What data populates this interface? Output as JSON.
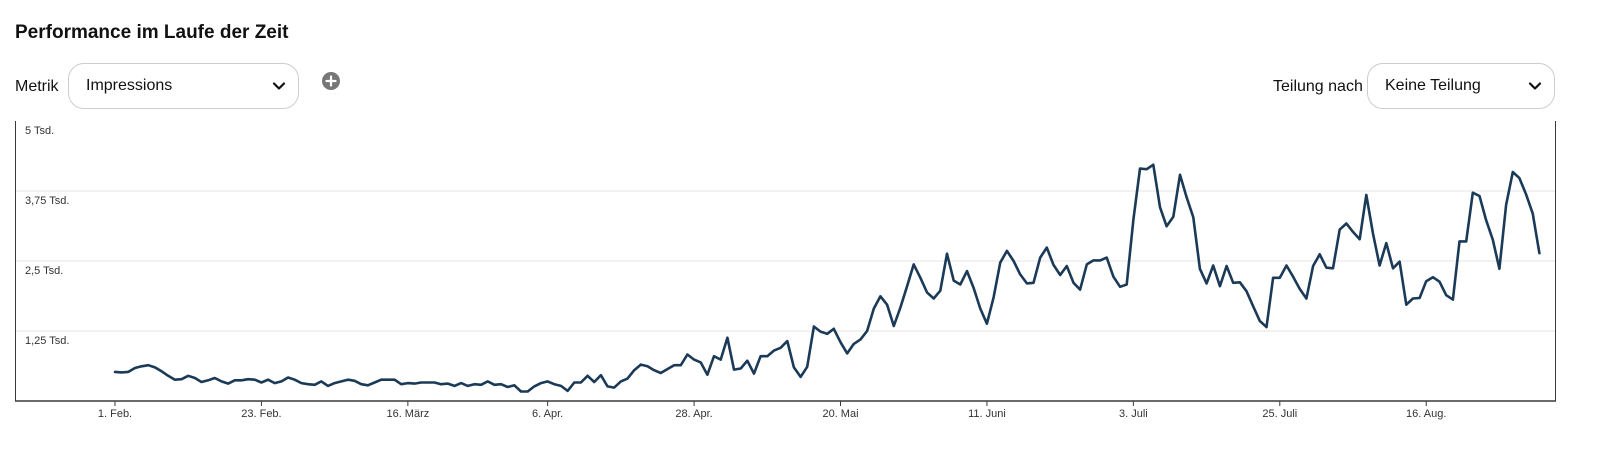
{
  "header": {
    "title": "Performance im Laufe der Zeit"
  },
  "controls": {
    "metric_label": "Metrik",
    "metric_value": "Impressions",
    "add_icon": "plus-circle-icon",
    "split_label": "Teilung nach",
    "split_value": "Keine Teilung",
    "chevron_icon": "chevron-down-icon"
  },
  "colors": {
    "line": "#1b3a57",
    "grid": "#e6e6e6",
    "frame": "#3a3a3a"
  },
  "chart_data": {
    "type": "line",
    "title": "",
    "xlabel": "",
    "ylabel": "",
    "ylim": [
      0,
      5000
    ],
    "yticks": [
      1250,
      2500,
      3750,
      5000
    ],
    "ytick_labels": [
      "1,25 Tsd.",
      "2,5 Tsd.",
      "3,75 Tsd.",
      "5 Tsd."
    ],
    "xticks": [
      "2024-02-01",
      "2024-02-23",
      "2024-03-16",
      "2024-04-06",
      "2024-04-28",
      "2024-05-20",
      "2024-06-11",
      "2024-07-03",
      "2024-07-25",
      "2024-08-16"
    ],
    "xtick_labels": [
      "1. Feb.",
      "23. Feb.",
      "16. März",
      "6. Apr.",
      "28. Apr.",
      "20. Mai",
      "11. Juni",
      "3. Juli",
      "25. Juli",
      "16. Aug."
    ],
    "grid": true,
    "series": [
      {
        "name": "",
        "start_date": "2024-02-01",
        "values": [
          520,
          510,
          520,
          590,
          620,
          640,
          600,
          530,
          450,
          380,
          390,
          450,
          410,
          340,
          370,
          410,
          350,
          310,
          370,
          370,
          390,
          380,
          330,
          380,
          320,
          350,
          420,
          380,
          320,
          300,
          290,
          350,
          270,
          320,
          350,
          380,
          360,
          300,
          280,
          330,
          380,
          380,
          380,
          300,
          320,
          310,
          330,
          330,
          330,
          300,
          310,
          270,
          320,
          270,
          300,
          290,
          350,
          290,
          300,
          250,
          280,
          170,
          170,
          260,
          320,
          350,
          300,
          270,
          180,
          330,
          330,
          450,
          340,
          460,
          260,
          240,
          350,
          400,
          550,
          650,
          620,
          550,
          500,
          570,
          640,
          640,
          830,
          740,
          690,
          470,
          800,
          740,
          1130,
          560,
          580,
          720,
          490,
          800,
          800,
          900,
          950,
          1070,
          600,
          430,
          610,
          1330,
          1240,
          1200,
          1290,
          1050,
          850,
          1020,
          1100,
          1250,
          1650,
          1870,
          1720,
          1340,
          1670,
          2050,
          2440,
          2200,
          1940,
          1830,
          1970,
          2630,
          2150,
          2080,
          2320,
          2020,
          1650,
          1380,
          1850,
          2470,
          2680,
          2500,
          2260,
          2100,
          2110,
          2560,
          2740,
          2430,
          2250,
          2410,
          2110,
          1990,
          2440,
          2510,
          2510,
          2560,
          2220,
          2040,
          2080,
          3240,
          4150,
          4140,
          4220,
          3460,
          3120,
          3290,
          4040,
          3640,
          3280,
          2360,
          2100,
          2420,
          2050,
          2410,
          2110,
          2120,
          1960,
          1690,
          1430,
          1320,
          2200,
          2200,
          2420,
          2220,
          2000,
          1830,
          2410,
          2620,
          2380,
          2370,
          3060,
          3170,
          3020,
          2890,
          3680,
          2990,
          2420,
          2820,
          2370,
          2490,
          1720,
          1830,
          1840,
          2140,
          2210,
          2130,
          1890,
          1810,
          2850,
          2850,
          3720,
          3660,
          3230,
          2880,
          2360,
          3500,
          4090,
          3980,
          3690,
          3350,
          2640
        ]
      }
    ]
  }
}
